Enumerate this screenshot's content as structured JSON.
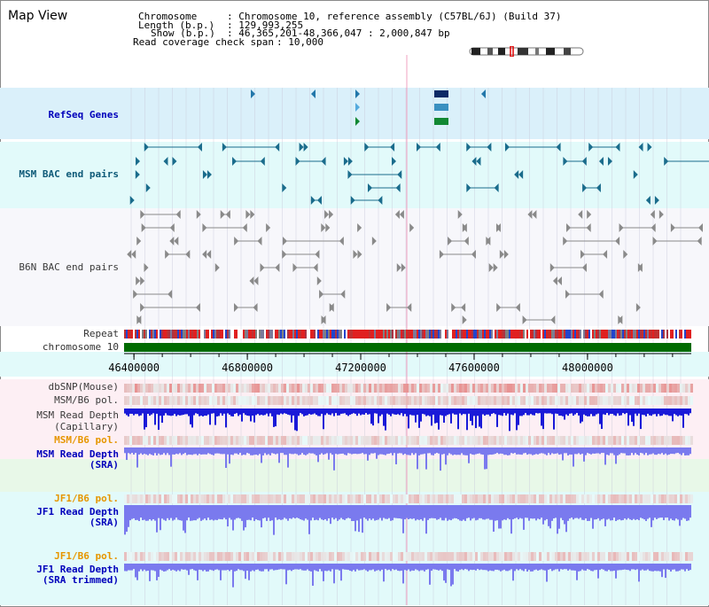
{
  "title": "Map View",
  "info": {
    "chromosome_label": "Chromosome",
    "chromosome_value": ": Chromosome 10, reference assembly (C57BL/6J) (Build 37)",
    "length_label": "Length (b.p.)",
    "length_value": ": 129,993,255",
    "show_label": "Show (b.p.)",
    "show_value": ": 46,365,201-48,366,047 : 2,000,847 bp",
    "coverage_label": "Read coverage check span",
    "coverage_value": ": 10,000"
  },
  "tracks": {
    "refseq": "RefSeq Genes",
    "msm_bac": "MSM BAC end pairs",
    "b6n_bac": "B6N BAC end pairs",
    "repeat": "Repeat",
    "chromosome": "chromosome 10",
    "dbsnp": "dbSNP(Mouse)",
    "msm_b6_pol_1": "MSM/B6 pol.",
    "msm_read_depth_cap_1": "MSM Read Depth",
    "msm_read_depth_cap_2": "(Capillary)",
    "msm_b6_pol_2": "MSM/B6 pol.",
    "msm_read_depth_sra_1": "MSM Read Depth",
    "msm_read_depth_sra_2": "(SRA)",
    "jf1_b6_pol_1": "JF1/B6 pol.",
    "jf1_read_depth_sra_1": "JF1 Read Depth",
    "jf1_read_depth_sra_2": "(SRA)",
    "jf1_b6_pol_2": "JF1/B6 pol.",
    "jf1_read_depth_trim_1": "JF1 Read Depth",
    "jf1_read_depth_trim_2": "(SRA trimmed)"
  },
  "axis": {
    "start_bp": 46365201,
    "end_bp": 48366047,
    "ticks": [
      "46400000",
      "46800000",
      "47200000",
      "47600000",
      "48000000"
    ]
  },
  "colors": {
    "refseq_bg": "#daf0fa",
    "msm_bg": "#e2fafa",
    "grid": "#c8c8d8",
    "chromosome": "#006b00",
    "pol": "#e83c3c",
    "depth_cap": "#1a1ad8",
    "depth_sra": "#7a7aee",
    "orange_label": "#e69600"
  }
}
